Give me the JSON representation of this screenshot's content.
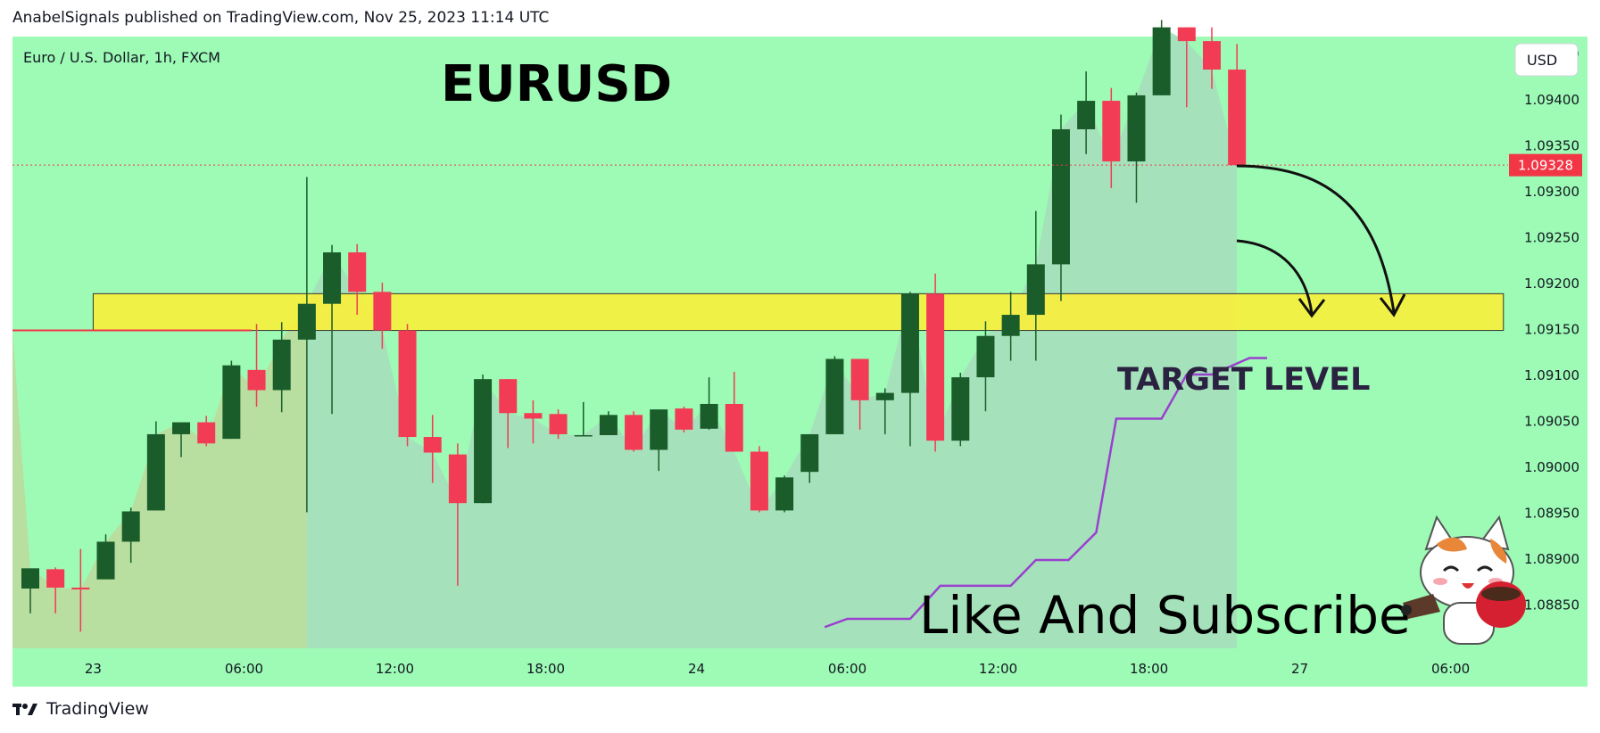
{
  "header": {
    "text": "AnabelSignals published on TradingView.com, Nov 25, 2023 11:14 UTC"
  },
  "footer": {
    "brand": "TradingView"
  },
  "colors": {
    "chart_bg": "#9dfbb5",
    "up": "#1a5c2a",
    "down": "#f23b54",
    "zone_fill": "#ffee33",
    "area_fill": "#a6dfbb",
    "purple_line": "#9a3fcf",
    "red_line": "#f23645",
    "price_tag": "#f23645"
  },
  "chart_data": {
    "type": "candlestick",
    "symbol_info": "Euro / U.S. Dollar, 1h, FXCM",
    "title": "EURUSD",
    "currency_button": "USD",
    "last_price": "1.09328",
    "y_ticks": [
      "1.09450",
      "1.09400",
      "1.09350",
      "1.09300",
      "1.09250",
      "1.09200",
      "1.09150",
      "1.09100",
      "1.09050",
      "1.09000",
      "1.08950",
      "1.08900",
      "1.08850"
    ],
    "x_ticks": [
      {
        "label": "23",
        "bar": 2.5
      },
      {
        "label": "06:00",
        "bar": 8.5
      },
      {
        "label": "12:00",
        "bar": 14.5
      },
      {
        "label": "18:00",
        "bar": 20.5
      },
      {
        "label": "24",
        "bar": 26.5
      },
      {
        "label": "06:00",
        "bar": 32.5
      },
      {
        "label": "12:00",
        "bar": 38.5
      },
      {
        "label": "18:00",
        "bar": 44.5
      },
      {
        "label": "27",
        "bar": 50.5
      },
      {
        "label": "06:00",
        "bar": 56.5
      }
    ],
    "ylim": [
      1.08825,
      1.09485
    ],
    "candles": [
      {
        "o": 1.08867,
        "h": 1.08886,
        "l": 1.0884,
        "c": 1.08889
      },
      {
        "o": 1.08888,
        "h": 1.0889,
        "l": 1.0884,
        "c": 1.08868
      },
      {
        "o": 1.08868,
        "h": 1.0891,
        "l": 1.0882,
        "c": 1.08866
      },
      {
        "o": 1.08877,
        "h": 1.08926,
        "l": 1.08878,
        "c": 1.08918
      },
      {
        "o": 1.08918,
        "h": 1.08955,
        "l": 1.08895,
        "c": 1.08951
      },
      {
        "o": 1.08952,
        "h": 1.09049,
        "l": 1.08952,
        "c": 1.09035
      },
      {
        "o": 1.09035,
        "h": 1.09048,
        "l": 1.0901,
        "c": 1.09048
      },
      {
        "o": 1.09048,
        "h": 1.09055,
        "l": 1.09022,
        "c": 1.09025
      },
      {
        "o": 1.0903,
        "h": 1.09115,
        "l": 1.0903,
        "c": 1.0911
      },
      {
        "o": 1.09105,
        "h": 1.09155,
        "l": 1.09065,
        "c": 1.09083
      },
      {
        "o": 1.09083,
        "h": 1.09157,
        "l": 1.09059,
        "c": 1.09138
      },
      {
        "o": 1.09138,
        "h": 1.09315,
        "l": 1.0895,
        "c": 1.09177
      },
      {
        "o": 1.09177,
        "h": 1.09241,
        "l": 1.09057,
        "c": 1.09233
      },
      {
        "o": 1.09233,
        "h": 1.09242,
        "l": 1.09165,
        "c": 1.0919
      },
      {
        "o": 1.0919,
        "h": 1.092,
        "l": 1.09128,
        "c": 1.09148
      },
      {
        "o": 1.09148,
        "h": 1.09155,
        "l": 1.09022,
        "c": 1.09032
      },
      {
        "o": 1.09032,
        "h": 1.09056,
        "l": 1.08982,
        "c": 1.09015
      },
      {
        "o": 1.09013,
        "h": 1.09025,
        "l": 1.0887,
        "c": 1.0896
      },
      {
        "o": 1.0896,
        "h": 1.091,
        "l": 1.0896,
        "c": 1.09095
      },
      {
        "o": 1.09095,
        "h": 1.09095,
        "l": 1.0902,
        "c": 1.09058
      },
      {
        "o": 1.09058,
        "h": 1.09072,
        "l": 1.09025,
        "c": 1.09052
      },
      {
        "o": 1.09057,
        "h": 1.09062,
        "l": 1.0903,
        "c": 1.09035
      },
      {
        "o": 1.09034,
        "h": 1.0907,
        "l": 1.09034,
        "c": 1.09034
      },
      {
        "o": 1.09034,
        "h": 1.0906,
        "l": 1.09034,
        "c": 1.09056
      },
      {
        "o": 1.09056,
        "h": 1.0906,
        "l": 1.09016,
        "c": 1.09018
      },
      {
        "o": 1.09018,
        "h": 1.09062,
        "l": 1.08995,
        "c": 1.09062
      },
      {
        "o": 1.09063,
        "h": 1.09065,
        "l": 1.09037,
        "c": 1.0904
      },
      {
        "o": 1.09041,
        "h": 1.09097,
        "l": 1.0904,
        "c": 1.09068
      },
      {
        "o": 1.09068,
        "h": 1.09103,
        "l": 1.09016,
        "c": 1.09016
      },
      {
        "o": 1.09016,
        "h": 1.09022,
        "l": 1.0895,
        "c": 1.08952
      },
      {
        "o": 1.08952,
        "h": 1.0899,
        "l": 1.0895,
        "c": 1.08988
      },
      {
        "o": 1.08994,
        "h": 1.09035,
        "l": 1.08982,
        "c": 1.09035
      },
      {
        "o": 1.09035,
        "h": 1.0912,
        "l": 1.09035,
        "c": 1.09117
      },
      {
        "o": 1.09117,
        "h": 1.09117,
        "l": 1.0904,
        "c": 1.09072
      },
      {
        "o": 1.09072,
        "h": 1.09085,
        "l": 1.09035,
        "c": 1.0908
      },
      {
        "o": 1.0908,
        "h": 1.0919,
        "l": 1.09022,
        "c": 1.09188
      },
      {
        "o": 1.09188,
        "h": 1.0921,
        "l": 1.09016,
        "c": 1.09028
      },
      {
        "o": 1.09028,
        "h": 1.09102,
        "l": 1.09022,
        "c": 1.09097
      },
      {
        "o": 1.09097,
        "h": 1.09158,
        "l": 1.0906,
        "c": 1.09142
      },
      {
        "o": 1.09142,
        "h": 1.0919,
        "l": 1.09115,
        "c": 1.09165
      },
      {
        "o": 1.09165,
        "h": 1.09278,
        "l": 1.09115,
        "c": 1.0922
      },
      {
        "o": 1.0922,
        "h": 1.09383,
        "l": 1.0918,
        "c": 1.09367
      },
      {
        "o": 1.09367,
        "h": 1.0943,
        "l": 1.0934,
        "c": 1.09398
      },
      {
        "o": 1.09398,
        "h": 1.09412,
        "l": 1.09303,
        "c": 1.09332
      },
      {
        "o": 1.09332,
        "h": 1.09407,
        "l": 1.09287,
        "c": 1.09404
      },
      {
        "o": 1.09404,
        "h": 1.09486,
        "l": 1.09404,
        "c": 1.09478
      },
      {
        "o": 1.09478,
        "h": 1.09478,
        "l": 1.09391,
        "c": 1.09463
      },
      {
        "o": 1.09463,
        "h": 1.09478,
        "l": 1.09411,
        "c": 1.09432
      },
      {
        "o": 1.09432,
        "h": 1.0946,
        "l": 1.09328,
        "c": 1.09328
      }
    ],
    "target_zone": {
      "top": 1.09188,
      "bottom": 1.09148,
      "from_bar": 2.5,
      "to_bar": 58.6
    },
    "target_label": "TARGET LEVEL",
    "red_level": {
      "price": 1.09148,
      "to_bar": 8.8
    },
    "purple_line": [
      [
        31.6,
        1.08825
      ],
      [
        32.5,
        1.08834
      ],
      [
        35,
        1.08834
      ],
      [
        36.2,
        1.0887
      ],
      [
        39,
        1.0887
      ],
      [
        40,
        1.08898
      ],
      [
        41.3,
        1.08898
      ],
      [
        42.4,
        1.08928
      ],
      [
        43.2,
        1.09052
      ],
      [
        45,
        1.09052
      ],
      [
        46,
        1.091
      ],
      [
        47,
        1.091
      ],
      [
        48.5,
        1.09118
      ],
      [
        49.2,
        1.09118
      ]
    ],
    "subscribe_text": "Like And Subscribe"
  }
}
